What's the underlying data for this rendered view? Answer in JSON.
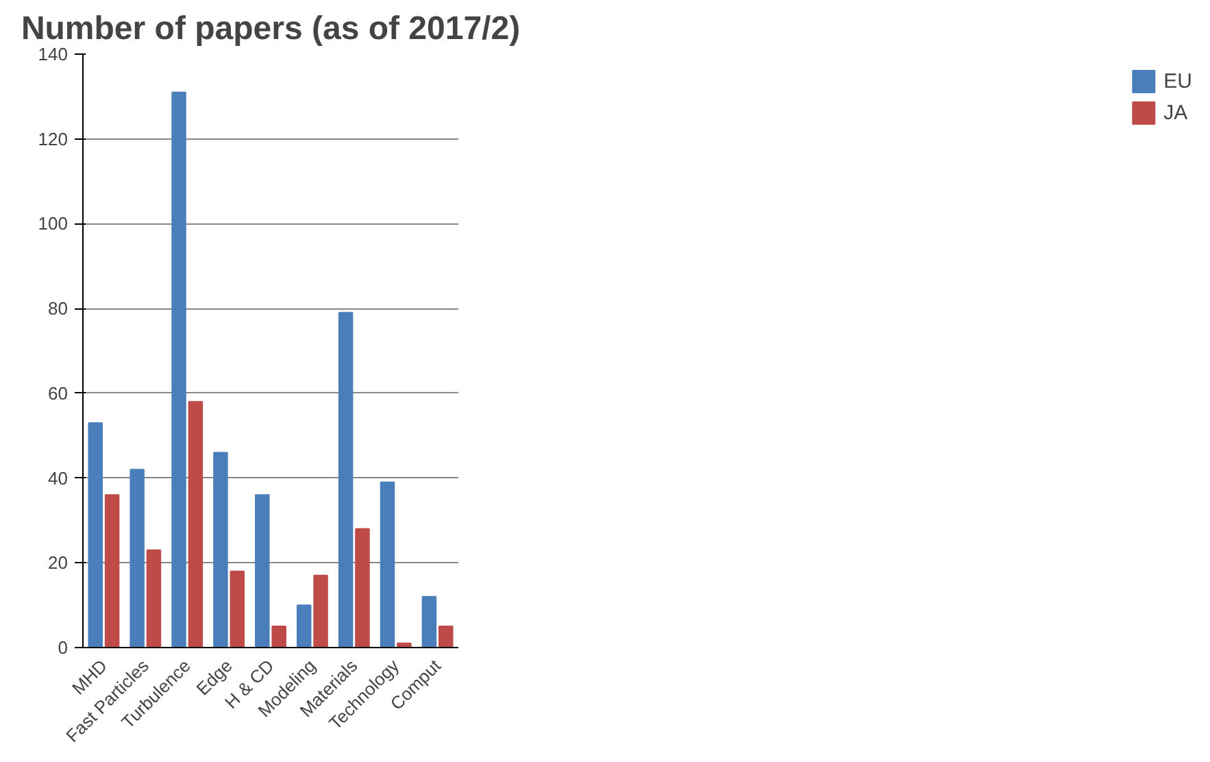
{
  "chart_data": {
    "type": "bar",
    "title": "Number of papers (as of 2017/2)",
    "categories": [
      "MHD",
      "Fast Particles",
      "Turbulence",
      "Edge",
      "H & CD",
      "Modeling",
      "Materials",
      "Technology",
      "Comput"
    ],
    "series": [
      {
        "name": "EU",
        "color": "#4a7ebb",
        "values": [
          53,
          42,
          131,
          46,
          36,
          10,
          79,
          39,
          12
        ]
      },
      {
        "name": "JA",
        "color": "#be4b48",
        "values": [
          36,
          23,
          58,
          18,
          5,
          17,
          28,
          1,
          5
        ]
      }
    ],
    "ylim": [
      0,
      140
    ],
    "yticks": [
      0,
      20,
      40,
      60,
      80,
      100,
      120,
      140
    ],
    "grid": "y",
    "legend": "right"
  }
}
